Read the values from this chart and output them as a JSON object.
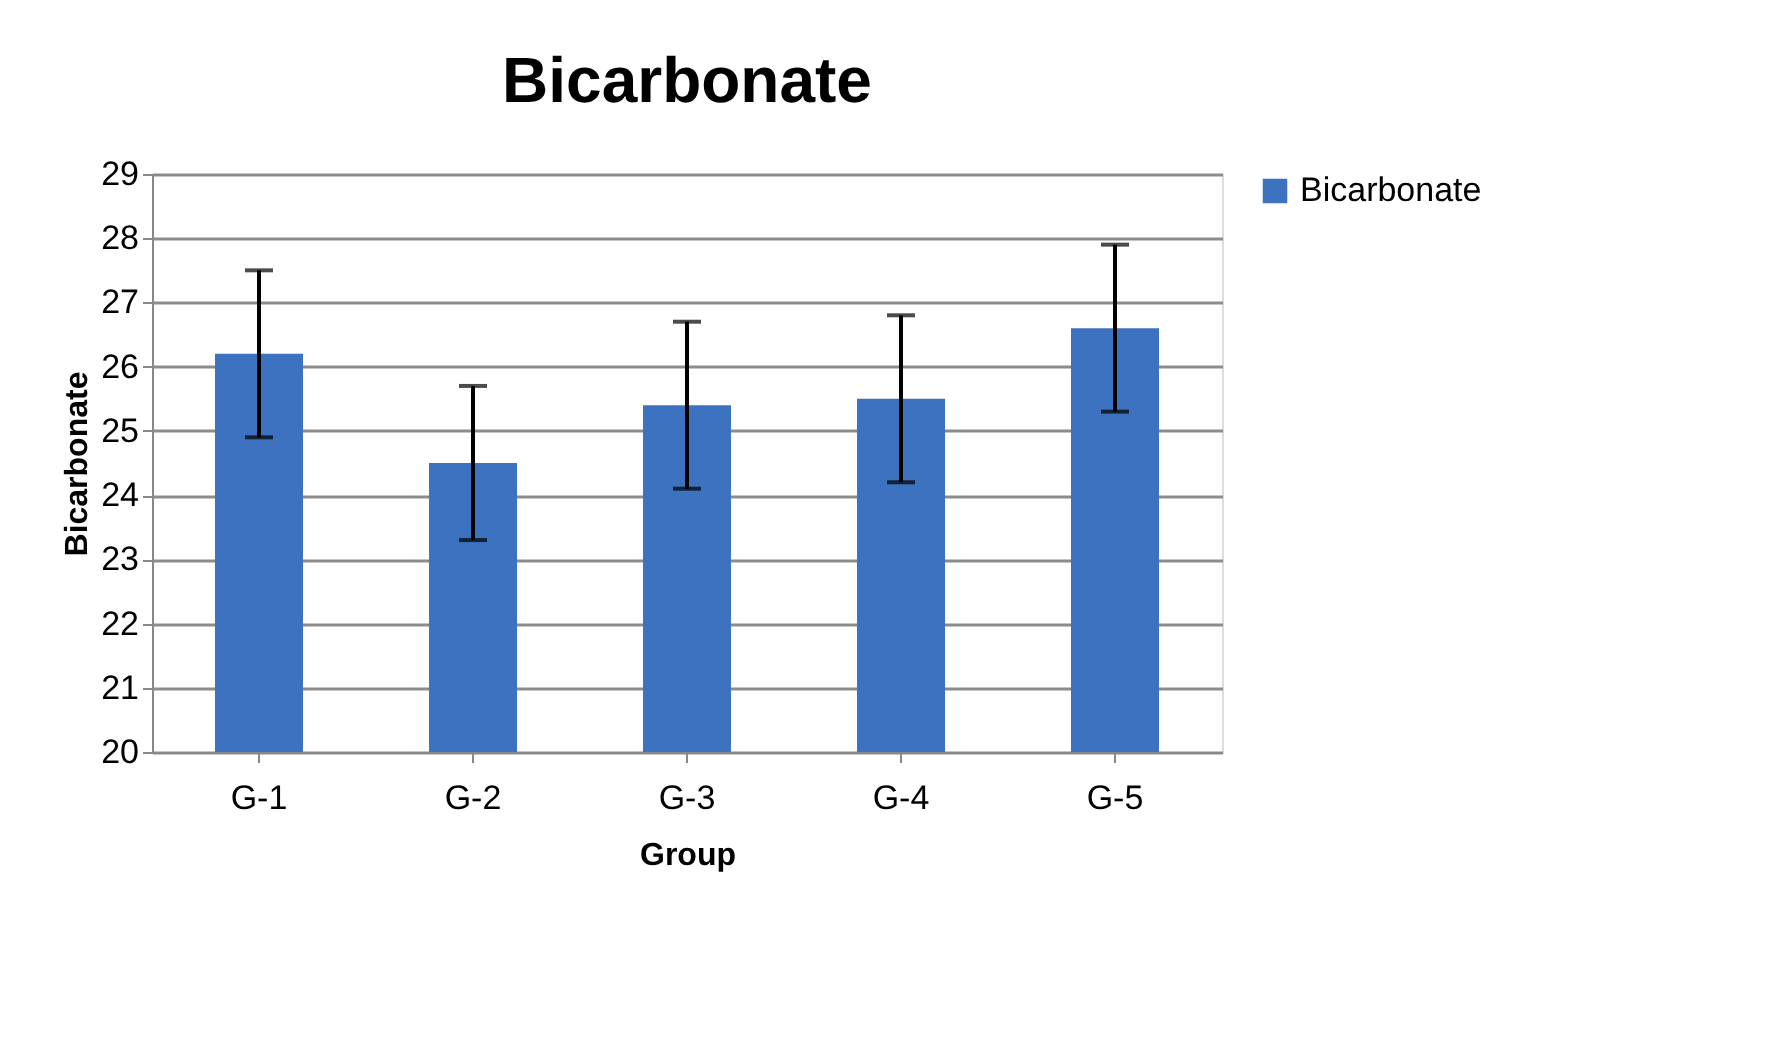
{
  "chart_data": {
    "type": "bar",
    "title": "Bicarbonate",
    "xlabel": "Group",
    "ylabel": "Bicarbonate",
    "categories": [
      "G-1",
      "G-2",
      "G-3",
      "G-4",
      "G-5"
    ],
    "series": [
      {
        "name": "Bicarbonate",
        "color": "#3c72bf",
        "values": [
          26.2,
          24.5,
          25.4,
          25.5,
          26.6
        ],
        "errors": [
          1.3,
          1.2,
          1.3,
          1.3,
          1.3
        ]
      }
    ],
    "ylim": [
      20,
      29
    ],
    "yticks": [
      20,
      21,
      22,
      23,
      24,
      25,
      26,
      27,
      28,
      29
    ],
    "grid": "y",
    "legend": "right"
  }
}
